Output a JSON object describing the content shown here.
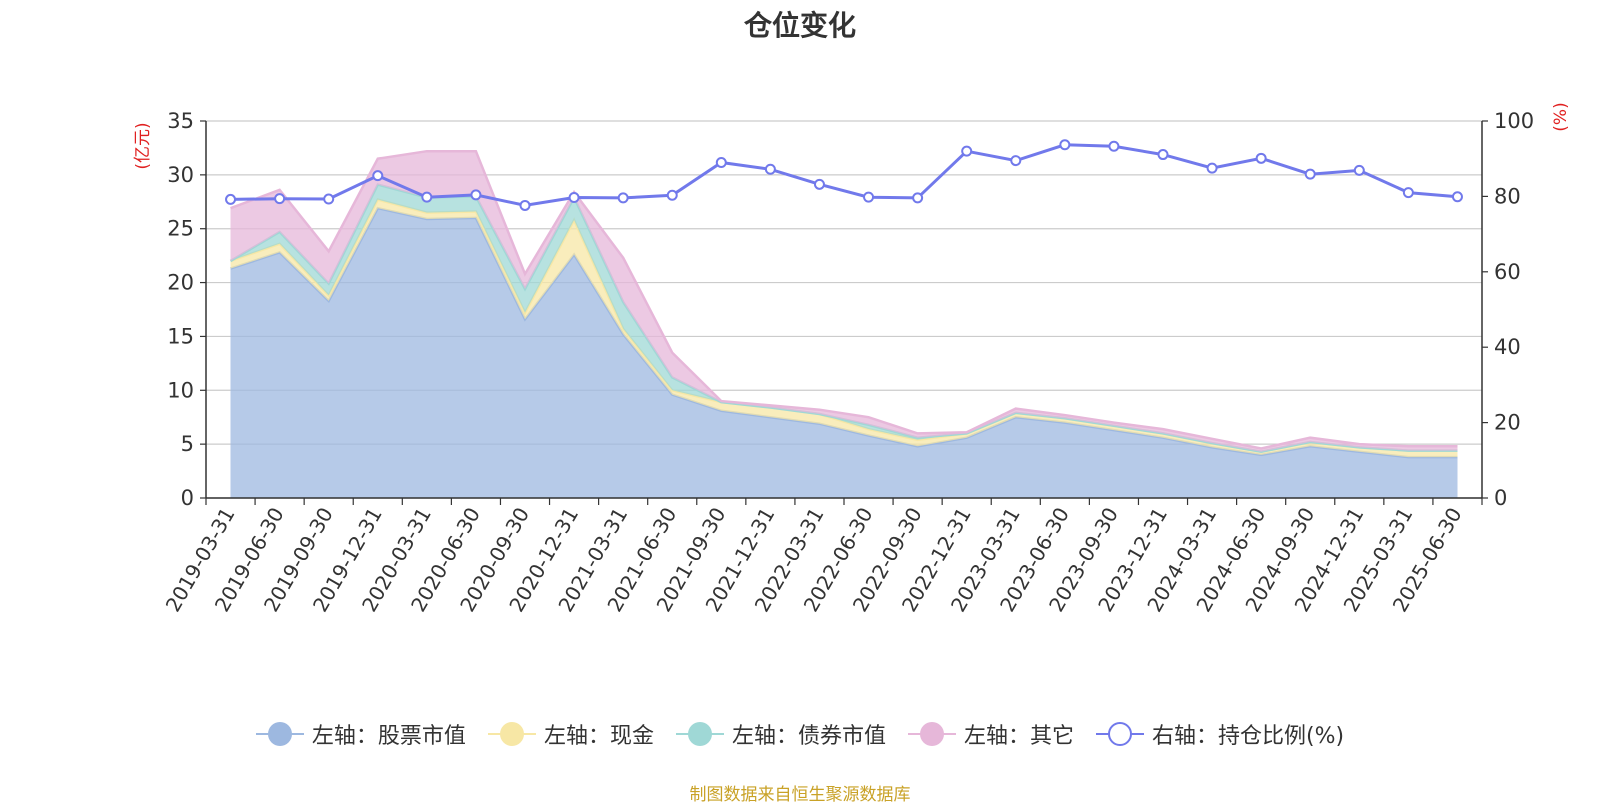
{
  "title": "仓位变化",
  "footer": "制图数据来自恒生聚源数据库",
  "chart_data": {
    "type": "area",
    "title": "仓位变化",
    "categories": [
      "2019-03-31",
      "2019-06-30",
      "2019-09-30",
      "2019-12-31",
      "2020-03-31",
      "2020-06-30",
      "2020-09-30",
      "2020-12-31",
      "2021-03-31",
      "2021-06-30",
      "2021-09-30",
      "2021-12-31",
      "2022-03-31",
      "2022-06-30",
      "2022-09-30",
      "2022-12-31",
      "2023-03-31",
      "2023-06-30",
      "2023-09-30",
      "2023-12-31",
      "2024-03-31",
      "2024-06-30",
      "2024-09-30",
      "2024-12-31",
      "2025-03-31",
      "2025-06-30"
    ],
    "left_axis": {
      "label": "(亿元)",
      "ylim": [
        0,
        35
      ],
      "ticks": [
        "0",
        "5",
        "10",
        "15",
        "20",
        "25",
        "30",
        "35"
      ]
    },
    "right_axis": {
      "label": "(%)",
      "ylim": [
        0,
        100
      ],
      "ticks": [
        "0",
        "20",
        "40",
        "60",
        "80",
        "100"
      ]
    },
    "series": [
      {
        "name": "左轴：股票市值",
        "axis": "left",
        "kind": "area",
        "color": "#9db8e0",
        "values": [
          21.3,
          22.8,
          18.3,
          26.9,
          25.9,
          26.0,
          16.6,
          22.6,
          15.2,
          9.6,
          8.1,
          7.5,
          6.9,
          5.8,
          4.8,
          5.6,
          7.5,
          7.0,
          6.3,
          5.6,
          4.7,
          4.0,
          4.8,
          4.3,
          3.8,
          3.8
        ]
      },
      {
        "name": "左轴：现金",
        "axis": "left",
        "kind": "area",
        "color": "#f7e7a5",
        "values": [
          0.7,
          0.8,
          0.5,
          0.8,
          0.6,
          0.6,
          0.6,
          3.2,
          0.5,
          0.4,
          0.8,
          0.9,
          0.9,
          0.6,
          0.6,
          0.4,
          0.4,
          0.4,
          0.4,
          0.4,
          0.4,
          0.3,
          0.4,
          0.4,
          0.6,
          0.6
        ]
      },
      {
        "name": "左轴：债券市值",
        "axis": "left",
        "kind": "area",
        "color": "#9fd8d6",
        "values": [
          0,
          1.1,
          1.1,
          1.4,
          1.4,
          1.4,
          2.2,
          2.1,
          2.5,
          1.2,
          0,
          0,
          0,
          0.4,
          0.2,
          0,
          0,
          0,
          0,
          0,
          0,
          0,
          0,
          0,
          0,
          0
        ]
      },
      {
        "name": "左轴：其它",
        "axis": "left",
        "kind": "area",
        "color": "#e6b7d9",
        "values": [
          4.9,
          3.9,
          3.0,
          2.4,
          4.3,
          4.2,
          1.4,
          0.5,
          4.1,
          2.3,
          0.1,
          0.2,
          0.4,
          0.7,
          0.4,
          0.1,
          0.4,
          0.3,
          0.3,
          0.4,
          0.4,
          0.3,
          0.4,
          0.3,
          0.4,
          0.4
        ]
      },
      {
        "name": "右轴：持仓比例(%)",
        "axis": "right",
        "kind": "line",
        "color": "#7179eb",
        "values": [
          79.2,
          79.4,
          79.3,
          85.5,
          79.8,
          80.4,
          77.6,
          79.7,
          79.6,
          80.3,
          89.0,
          87.2,
          83.2,
          79.8,
          79.6,
          92.0,
          89.5,
          93.7,
          93.3,
          91.1,
          87.5,
          90.1,
          85.9,
          86.9,
          81.0,
          79.9
        ]
      }
    ],
    "legend": "bottom-center",
    "grid": true
  }
}
